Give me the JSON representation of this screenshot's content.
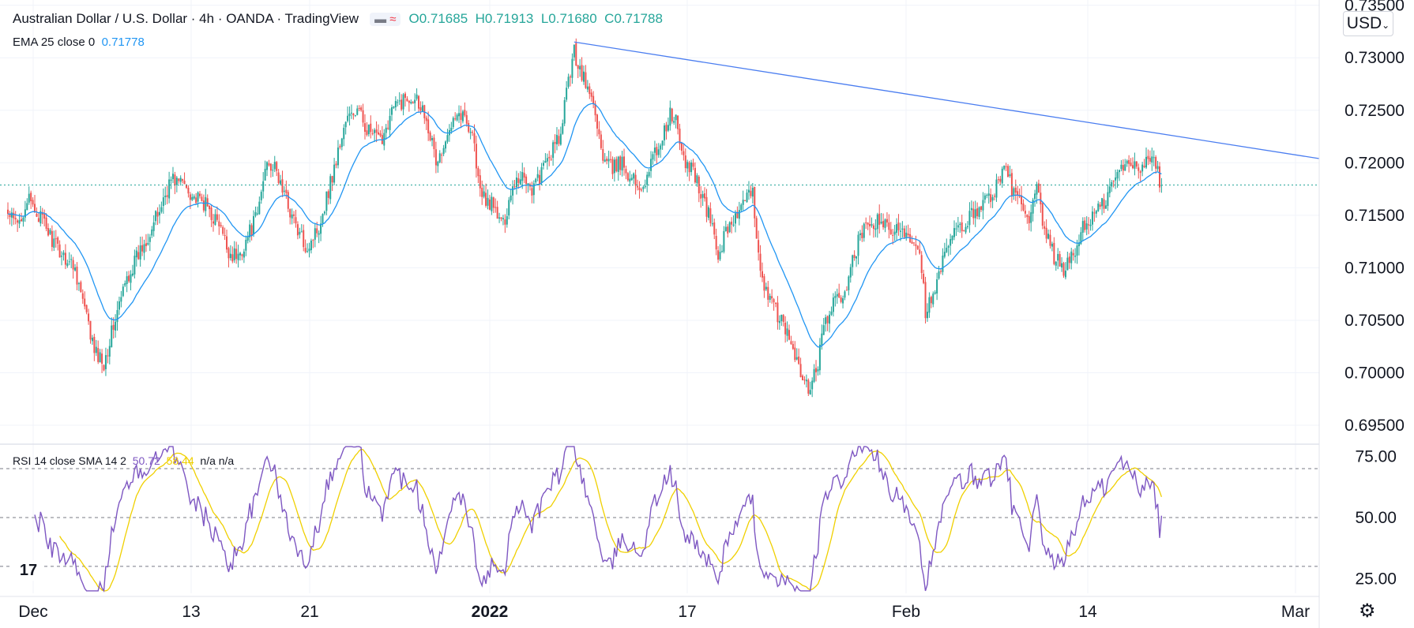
{
  "header": {
    "symbol_title": "Australian Dollar / U.S. Dollar · 4h · OANDA · TradingView",
    "chip_a": "▬",
    "chip_b": "≈",
    "open": "O0.71685",
    "high": "H0.71913",
    "low": "L0.71680",
    "close": "C0.71788"
  },
  "ema_legend": {
    "label": "EMA 25 close 0",
    "value": "0.71778"
  },
  "rsi_legend": {
    "label": "RSI 14 close SMA 14 2",
    "rsi": "50.72",
    "sma": "58.44",
    "na": "n/a n/a"
  },
  "currency_button": "USD",
  "logo_text": "17",
  "gear_glyph": "⚙",
  "colors": {
    "up": "#26a69a",
    "down": "#ef5350",
    "ema": "#2196f3",
    "trend": "#4a7df0",
    "rsi": "#7e57c2",
    "rsi_sma": "#f0d000",
    "grid": "#f0f3fa",
    "last_price": "#26a69a"
  },
  "chart_data": [
    {
      "type": "candlestick",
      "title": "Australian Dollar / U.S. Dollar · 4h · OANDA · TradingView",
      "x_tick_labels": [
        "Dec",
        "13",
        "21",
        "2022",
        "17",
        "Feb",
        "14",
        "Mar"
      ],
      "y_tick_labels": [
        "0.73500",
        "0.73000",
        "0.72500",
        "0.72000",
        "0.71500",
        "0.71000",
        "0.70500",
        "0.70000",
        "0.69500"
      ],
      "ylim": [
        0.6932,
        0.7355
      ],
      "last_price": 0.71788,
      "trend_line": {
        "from": 0.7315,
        "to": 0.7204
      },
      "price_anchors": [
        [
          0,
          0.715
        ],
        [
          5,
          0.714
        ],
        [
          10,
          0.7165
        ],
        [
          18,
          0.7145
        ],
        [
          25,
          0.712
        ],
        [
          35,
          0.71
        ],
        [
          45,
          0.702
        ],
        [
          50,
          0.701
        ],
        [
          55,
          0.7045
        ],
        [
          62,
          0.709
        ],
        [
          70,
          0.712
        ],
        [
          78,
          0.715
        ],
        [
          85,
          0.7185
        ],
        [
          92,
          0.718
        ],
        [
          98,
          0.7165
        ],
        [
          103,
          0.716
        ],
        [
          110,
          0.714
        ],
        [
          115,
          0.7115
        ],
        [
          120,
          0.711
        ],
        [
          125,
          0.713
        ],
        [
          130,
          0.715
        ],
        [
          135,
          0.7205
        ],
        [
          140,
          0.719
        ],
        [
          146,
          0.716
        ],
        [
          152,
          0.713
        ],
        [
          156,
          0.712
        ],
        [
          162,
          0.714
        ],
        [
          170,
          0.7195
        ],
        [
          176,
          0.724
        ],
        [
          182,
          0.725
        ],
        [
          188,
          0.723
        ],
        [
          194,
          0.722
        ],
        [
          200,
          0.725
        ],
        [
          206,
          0.726
        ],
        [
          212,
          0.7265
        ],
        [
          218,
          0.7245
        ],
        [
          223,
          0.72
        ],
        [
          228,
          0.7215
        ],
        [
          232,
          0.725
        ],
        [
          237,
          0.7245
        ],
        [
          242,
          0.723
        ],
        [
          246,
          0.717
        ],
        [
          252,
          0.716
        ],
        [
          258,
          0.714
        ],
        [
          263,
          0.718
        ],
        [
          268,
          0.719
        ],
        [
          273,
          0.7175
        ],
        [
          278,
          0.719
        ],
        [
          283,
          0.721
        ],
        [
          288,
          0.7225
        ],
        [
          292,
          0.728
        ],
        [
          295,
          0.7305
        ],
        [
          298,
          0.729
        ],
        [
          302,
          0.727
        ],
        [
          306,
          0.725
        ],
        [
          310,
          0.72
        ],
        [
          315,
          0.7195
        ],
        [
          320,
          0.72
        ],
        [
          325,
          0.7185
        ],
        [
          330,
          0.7175
        ],
        [
          335,
          0.72
        ],
        [
          340,
          0.722
        ],
        [
          345,
          0.7245
        ],
        [
          348,
          0.724
        ],
        [
          352,
          0.72
        ],
        [
          357,
          0.7195
        ],
        [
          362,
          0.7165
        ],
        [
          367,
          0.714
        ],
        [
          370,
          0.711
        ],
        [
          375,
          0.714
        ],
        [
          380,
          0.715
        ],
        [
          385,
          0.7165
        ],
        [
          388,
          0.717
        ],
        [
          392,
          0.71
        ],
        [
          396,
          0.707
        ],
        [
          400,
          0.706
        ],
        [
          405,
          0.704
        ],
        [
          410,
          0.702
        ],
        [
          414,
          0.699
        ],
        [
          418,
          0.6985
        ],
        [
          422,
          0.701
        ],
        [
          426,
          0.705
        ],
        [
          430,
          0.7065
        ],
        [
          434,
          0.707
        ],
        [
          438,
          0.709
        ],
        [
          443,
          0.7125
        ],
        [
          448,
          0.714
        ],
        [
          455,
          0.7145
        ],
        [
          460,
          0.713
        ],
        [
          465,
          0.714
        ],
        [
          470,
          0.713
        ],
        [
          475,
          0.712
        ],
        [
          478,
          0.706
        ],
        [
          482,
          0.707
        ],
        [
          486,
          0.71
        ],
        [
          492,
          0.713
        ],
        [
          498,
          0.714
        ],
        [
          504,
          0.7155
        ],
        [
          510,
          0.7165
        ],
        [
          516,
          0.718
        ],
        [
          520,
          0.7195
        ],
        [
          524,
          0.717
        ],
        [
          528,
          0.716
        ],
        [
          532,
          0.714
        ],
        [
          536,
          0.7175
        ],
        [
          540,
          0.7135
        ],
        [
          545,
          0.711
        ],
        [
          550,
          0.71
        ],
        [
          555,
          0.711
        ],
        [
          560,
          0.714
        ],
        [
          566,
          0.715
        ],
        [
          572,
          0.7165
        ],
        [
          578,
          0.719
        ],
        [
          584,
          0.72
        ],
        [
          590,
          0.7195
        ],
        [
          594,
          0.721
        ],
        [
          598,
          0.7195
        ],
        [
          601,
          0.7179
        ]
      ]
    },
    {
      "type": "line",
      "title": "RSI 14 close SMA 14 2",
      "y_tick_labels": [
        "75.00",
        "50.00",
        "25.00"
      ],
      "ylim": [
        19,
        80
      ],
      "guide_levels": [
        70,
        50,
        30
      ],
      "rsi_value": 50.72,
      "sma_value": 58.44
    }
  ]
}
